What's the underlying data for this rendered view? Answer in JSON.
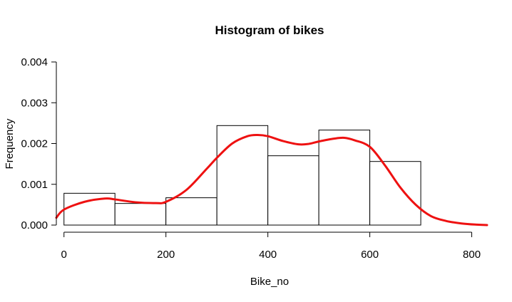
{
  "chart_data": {
    "type": "bar",
    "title": "Histogram of bikes",
    "xlabel": "Bike_no",
    "ylabel": "Frequency",
    "bins": [
      {
        "start": 0,
        "end": 100,
        "value": 0.00078
      },
      {
        "start": 100,
        "end": 200,
        "value": 0.00053
      },
      {
        "start": 200,
        "end": 300,
        "value": 0.00067
      },
      {
        "start": 300,
        "end": 400,
        "value": 0.00244
      },
      {
        "start": 400,
        "end": 500,
        "value": 0.0017
      },
      {
        "start": 500,
        "end": 600,
        "value": 0.00233
      },
      {
        "start": 600,
        "end": 700,
        "value": 0.00156
      }
    ],
    "xlim": [
      -15,
      830
    ],
    "ylim": [
      0,
      0.004
    ],
    "xticks": [
      0,
      200,
      400,
      600,
      800
    ],
    "xtick_labels": [
      "0",
      "200",
      "400",
      "600",
      "800"
    ],
    "yticks": [
      0,
      0.001,
      0.002,
      0.003,
      0.004
    ],
    "ytick_labels": [
      "0.000",
      "0.001",
      "0.002",
      "0.003",
      "0.004"
    ],
    "density_curve": {
      "color": "#ee1111",
      "x": [
        -15,
        0,
        40,
        80,
        100,
        140,
        180,
        200,
        240,
        280,
        300,
        330,
        360,
        380,
        400,
        430,
        460,
        480,
        500,
        530,
        550,
        570,
        600,
        630,
        660,
        690,
        720,
        750,
        780,
        810,
        830
      ],
      "y": [
        0.00018,
        0.00038,
        0.00057,
        0.00065,
        0.00063,
        0.00056,
        0.00054,
        0.00057,
        0.00086,
        0.00138,
        0.00165,
        0.002,
        0.00218,
        0.00221,
        0.00218,
        0.00206,
        0.00198,
        0.00199,
        0.00205,
        0.00212,
        0.00214,
        0.00208,
        0.00192,
        0.00146,
        0.00092,
        0.0005,
        0.00022,
        0.0001,
        4e-05,
        1e-05,
        0.0
      ]
    },
    "bar_fill": "#ffffff",
    "bar_stroke": "#000000",
    "grid": false,
    "legend": "none"
  }
}
